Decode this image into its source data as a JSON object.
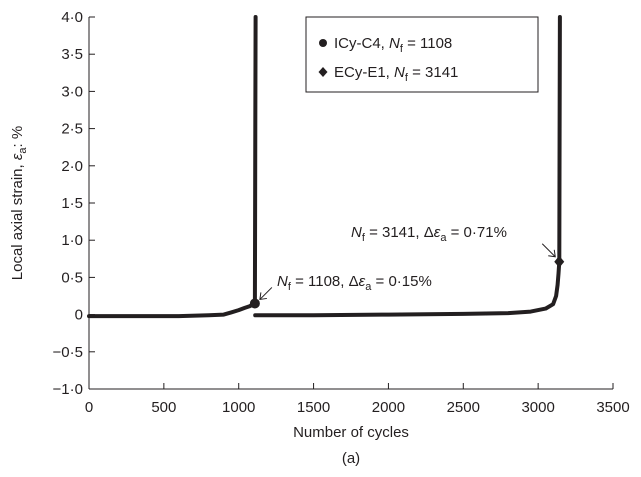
{
  "chart_data": {
    "type": "line",
    "panel_label": "(a)",
    "xlabel": "Number of cycles",
    "ylabel": {
      "main": "Local axial strain, ",
      "symbol": "ε",
      "subscript": "a",
      "suffix": ": %"
    },
    "xlim": [
      0,
      3500
    ],
    "ylim": [
      -1.0,
      4.0
    ],
    "x_ticks": [
      {
        "value": 0,
        "label": "0"
      },
      {
        "value": 500,
        "label": "500"
      },
      {
        "value": 1000,
        "label": "1000"
      },
      {
        "value": 1500,
        "label": "1500"
      },
      {
        "value": 2000,
        "label": "2000"
      },
      {
        "value": 2500,
        "label": "2500"
      },
      {
        "value": 3000,
        "label": "3000"
      },
      {
        "value": 3500,
        "label": "3500"
      }
    ],
    "y_ticks": [
      {
        "value": 4.0,
        "label": "4·0"
      },
      {
        "value": 3.5,
        "label": "3·5"
      },
      {
        "value": 3.0,
        "label": "3·0"
      },
      {
        "value": 2.5,
        "label": "2·5"
      },
      {
        "value": 2.0,
        "label": "2·0"
      },
      {
        "value": 1.5,
        "label": "1·5"
      },
      {
        "value": 1.0,
        "label": "1·0"
      },
      {
        "value": 0.5,
        "label": "0·5"
      },
      {
        "value": 0,
        "label": "0"
      },
      {
        "value": -0.5,
        "label": "−0·5"
      },
      {
        "value": -1.0,
        "label": "−1·0"
      }
    ],
    "grid": false,
    "legend_position": "top-right",
    "series": [
      {
        "name_parts": {
          "specimen": "ICy-C4, ",
          "symbol": "N",
          "subscript": "f",
          "value": " = 1108"
        },
        "marker": "circle",
        "color": "#231f20",
        "x": [
          0,
          200,
          400,
          600,
          800,
          900,
          950,
          1000,
          1040,
          1070,
          1090,
          1100,
          1108,
          1111,
          1113
        ],
        "y": [
          -0.02,
          -0.02,
          -0.02,
          -0.02,
          -0.01,
          0.0,
          0.03,
          0.06,
          0.09,
          0.11,
          0.13,
          0.15,
          0.15,
          2.5,
          4.0
        ],
        "failure": {
          "x": 1108,
          "y": 0.15
        }
      },
      {
        "name_parts": {
          "specimen": "ECy-E1, ",
          "symbol": "N",
          "subscript": "f",
          "value": " = 3141"
        },
        "marker": "diamond",
        "color": "#231f20",
        "x": [
          1110,
          1500,
          2000,
          2500,
          2800,
          2950,
          3050,
          3100,
          3120,
          3130,
          3136,
          3141,
          3143,
          3145
        ],
        "y": [
          -0.01,
          -0.01,
          0.0,
          0.01,
          0.02,
          0.04,
          0.08,
          0.14,
          0.25,
          0.4,
          0.55,
          0.71,
          2.5,
          4.0
        ],
        "failure": {
          "x": 3141,
          "y": 0.71
        }
      }
    ],
    "annotations": [
      {
        "series_index": 0,
        "parts": {
          "symbol": "N",
          "subscript": "f",
          "mid": " = 1108, Δ",
          "symbol2": "ε",
          "subscript2": "a",
          "end": " = 0·15%"
        }
      },
      {
        "series_index": 1,
        "parts": {
          "symbol": "N",
          "subscript": "f",
          "mid": " = 3141, Δ",
          "symbol2": "ε",
          "subscript2": "a",
          "end": " = 0·71%"
        }
      }
    ]
  }
}
